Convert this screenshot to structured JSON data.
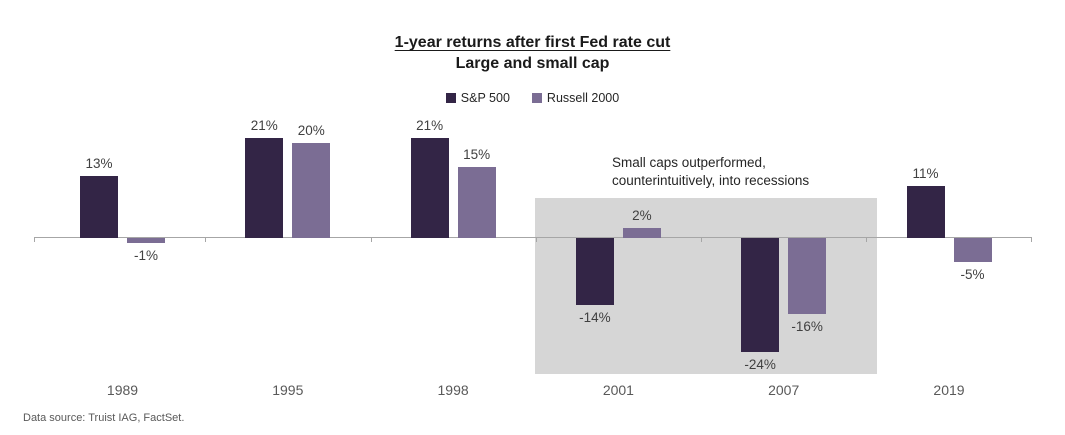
{
  "chart_data": {
    "type": "bar",
    "title": "1-year returns after first Fed rate cut",
    "subtitle": "Large and small cap",
    "categories": [
      "1989",
      "1995",
      "1998",
      "2001",
      "2007",
      "2019"
    ],
    "series": [
      {
        "name": "S&P 500",
        "color": "#332546",
        "values": [
          13,
          21,
          21,
          -14,
          -24,
          11
        ]
      },
      {
        "name": "Russell 2000",
        "color": "#7b6d94",
        "values": [
          -1,
          20,
          15,
          2,
          -16,
          -5
        ]
      }
    ],
    "value_suffix": "%",
    "ylim": [
      -30,
      25
    ],
    "grid": false,
    "legend_position": "top",
    "axis_color": "#a6a6a6",
    "annotation": {
      "lines": [
        "Small caps outperformed,",
        "counterintuitively, into recessions"
      ],
      "highlighted_categories": [
        "2001",
        "2007"
      ],
      "highlight_color": "#d6d6d6"
    }
  },
  "footer": {
    "text": "Data source: Truist IAG, FactSet."
  }
}
